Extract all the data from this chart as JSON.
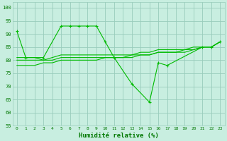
{
  "main_x": [
    0,
    1,
    3,
    5,
    6,
    7,
    8,
    9,
    10,
    11,
    13,
    15,
    16,
    17,
    21,
    22,
    23
  ],
  "main_y": [
    91,
    81,
    81,
    93,
    93,
    93,
    93,
    93,
    87,
    81,
    71,
    64,
    79,
    78,
    85,
    85,
    87
  ],
  "smooth_lines": [
    [
      81,
      81,
      81,
      80,
      81,
      82,
      82,
      82,
      82,
      82,
      82,
      82,
      82,
      82,
      83,
      83,
      84,
      84,
      84,
      84,
      85,
      85,
      85,
      87
    ],
    [
      78,
      78,
      78,
      79,
      79,
      80,
      80,
      80,
      80,
      80,
      81,
      81,
      81,
      81,
      82,
      82,
      83,
      83,
      83,
      83,
      84,
      85,
      85,
      87
    ],
    [
      80,
      80,
      80,
      80,
      80,
      81,
      81,
      81,
      81,
      81,
      81,
      81,
      81,
      82,
      82,
      82,
      83,
      83,
      83,
      84,
      84,
      85,
      85,
      87
    ]
  ],
  "line_color": "#00bb00",
  "bg_color": "#c8eee0",
  "grid_color": "#99ccbb",
  "text_color": "#007700",
  "xlabel": "Humidité relative (%)",
  "ylim": [
    55,
    102
  ],
  "yticks": [
    55,
    60,
    65,
    70,
    75,
    80,
    85,
    90,
    95,
    100
  ],
  "xticks": [
    0,
    1,
    2,
    3,
    4,
    5,
    6,
    7,
    8,
    9,
    10,
    11,
    12,
    13,
    14,
    15,
    16,
    17,
    18,
    19,
    20,
    21,
    22,
    23
  ]
}
